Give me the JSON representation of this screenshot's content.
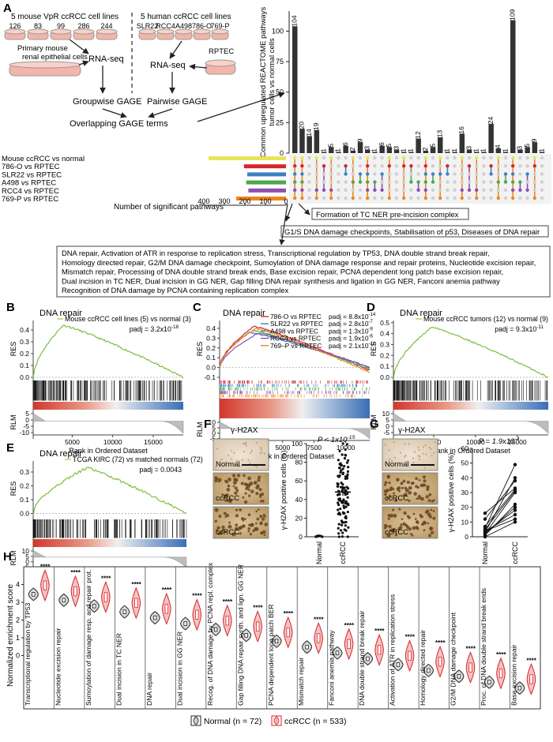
{
  "panel_A": {
    "label": "A",
    "left_title": "5 mouse VpR ccRCC cell lines",
    "mouse_lines": [
      "126",
      "83",
      "99",
      "286",
      "244"
    ],
    "primary_cells": "Primary mouse renal epithelial cells",
    "right_title": "5 human ccRCC cell lines",
    "human_lines": [
      "SLR22",
      "RCC4",
      "A498",
      "786-O",
      "769-P"
    ],
    "rptec": "RPTEC",
    "rnaseq": "RNA-seq",
    "groupwise": "Groupwise GAGE",
    "pairwise": "Pairwise GAGE",
    "overlap": "Overlapping GAGE terms",
    "ylabel_lines": [
      "Common upregulated REACTOME pathways",
      "tumor cells vs normal cells"
    ],
    "xlabel": "Number of significant pathways",
    "set_labels": [
      "Mouse ccRCC vs normal",
      "786-O vs RPTEC",
      "SLR22 vs RPTEC",
      "A498 vs RPTEC",
      "RCC4 vs RPTEC",
      "769-P vs RPTEC"
    ],
    "set_colors": [
      "#e9e35a",
      "#d4262b",
      "#3f7fc4",
      "#4ea84c",
      "#8f4db0",
      "#ee8622"
    ],
    "callout_tcner": "Formation of TC NER pre-incision complex",
    "callout_g1s": "G1/S DNA damage checkpoints, Stabilisation of p53, Diseases of DNA repair",
    "callout_box_lines": [
      "DNA repair, Activation of ATR in response to replication stress, Transcriptional regulation by TP53, DNA double strand break repair,",
      "Homology directed repair, G2/M DNA damage checkpoint, Sumoylation of DNA damage response and repair proteins, Nucleotide excision repair,",
      "Mismatch repair, Processing of DNA double strand break ends, Base excision repair, PCNA dependent long patch base excision repair,",
      "Dual incision in TC NER, Dual incision in GG NER, Gap filling DNA repair synthesis and ligation in GG NER, Fanconi anemia pathway",
      "Recognition of DNA damage by PCNA containing replication complex"
    ]
  },
  "panel_B": {
    "label": "B",
    "title": "DNA repair",
    "legend": "Mouse ccRCC cell lines (5) vs normal (3)",
    "padj": "padj = 3.2x10",
    "padj_exp": "-18",
    "res": "RES",
    "rlm": "RLM",
    "xlabel": "Rank in Ordered Dataset"
  },
  "panel_C": {
    "label": "C",
    "title": "DNA repair",
    "legend": [
      {
        "name": "786-O vs RPTEC",
        "padj": "padj = 8.8x10",
        "exp": "-14"
      },
      {
        "name": "SLR22  vs RPTEC",
        "padj": "padj = 2.8x10",
        "exp": "-7"
      },
      {
        "name": "A498   vs RPTEC",
        "padj": "padj = 1.3x10",
        "exp": "-9"
      },
      {
        "name": "RCC4 vs RPTEC",
        "padj": "padj = 1.9x10",
        "exp": "-6"
      },
      {
        "name": "769–P vs RPTEC",
        "padj": "padj = 2.1x10",
        "exp": "-11"
      }
    ],
    "res": "RES",
    "rlm": "RLM",
    "xlabel": "Rank in Ordered Dataset"
  },
  "panel_D": {
    "label": "D",
    "title": "DNA repair",
    "legend": "Mouse ccRCC tumors (12) vs normal (9)",
    "padj": "padj = 9.3x10",
    "padj_exp": "-11",
    "res": "RES",
    "rlm": "RLM",
    "xlabel": "Rank in Ordered Dataset"
  },
  "panel_E": {
    "label": "E",
    "title": "DNA repair",
    "legend": "TCGA KIRC (72) vs matched normals (72)",
    "padj": "padj = 0.0043",
    "res": "RES",
    "rlm": "RLM",
    "xlabel": "Rank in Ordered Dataset"
  },
  "panel_F": {
    "label": "F",
    "stain": "γ-H2AX",
    "tiles": [
      "Normal",
      "ccRCC",
      "ccRCC"
    ],
    "pval": "P < 1x10",
    "pval_exp": "-15",
    "ylabel": "γ-H2AX positive cells (%)",
    "groups": [
      "Normal",
      "ccRCC"
    ]
  },
  "panel_G": {
    "label": "G",
    "stain": "γ-H2AX",
    "tiles": [
      "Normal",
      "ccRCC",
      "ccRCC"
    ],
    "pval": "P = 1.9x10",
    "pval_exp": "-4",
    "ylabel": "γ-H2AX positive cells (%)",
    "groups": [
      "Normal",
      "ccRCC"
    ]
  },
  "panel_H": {
    "label": "H",
    "ylabel": "Normalized enrichment score",
    "pathways": [
      "Transcriptional regulation by TP53",
      "Nucleotide excision repair",
      "Sumoylation of damage resp. and repair prot.",
      "Dual incision in TC NER",
      "DNA repair",
      "Dual incision in GG NER",
      "Recog. of DNA damage by PCNA repl. complex",
      "Gap filling DNA repair synth. and lign. GG NER",
      "PCNA dependent long patch BER",
      "Mismatch repair",
      "Fanconi anemia pathway",
      "DNA double strand break repair",
      "Activation of ATR in replication stress",
      "Homology directed repair",
      "G2/M DNA damage checkpoint",
      "Proc. of DNA double strand break ends",
      "Base excision repair"
    ],
    "sig": "****",
    "legend_normal": "Normal (n = 72)",
    "legend_ccrcc": "ccRCC (n = 533)"
  },
  "chart_data": [
    {
      "type": "bar",
      "title": "",
      "ylabel": "Common upregulated REACTOME pathways tumor cells vs normal cells",
      "values": [
        104,
        20,
        14,
        19,
        1,
        5,
        1,
        6,
        2,
        9,
        3,
        1,
        6,
        5,
        3,
        1,
        1,
        12,
        2,
        5,
        13,
        1,
        1,
        16,
        3,
        1,
        1,
        24,
        4,
        1,
        109,
        3,
        5,
        9,
        1
      ],
      "horizontal_bars": {
        "categories": [
          "Mouse ccRCC vs normal",
          "786-O vs RPTEC",
          "SLR22 vs RPTEC",
          "A498 vs RPTEC",
          "RCC4 vs RPTEC",
          "769-P vs RPTEC"
        ],
        "values": [
          350,
          190,
          175,
          180,
          170,
          225
        ]
      },
      "xlabel": "Number of significant pathways",
      "xticks": [
        "400",
        "300",
        "200",
        "100",
        "0"
      ]
    },
    {
      "type": "scatter",
      "title": "",
      "ylabel": "γ-H2AX positive cells (%)",
      "categories": [
        "Normal",
        "ccRCC"
      ],
      "yticks": [
        "0",
        "20",
        "40",
        "60",
        "80",
        "100"
      ],
      "ylim": [
        0,
        100
      ],
      "normal_values": [
        0,
        0.5,
        1,
        0,
        0.3,
        1.2,
        0.8,
        0.2
      ],
      "ccrcc_mean": 48
    },
    {
      "type": "line",
      "title": "",
      "ylabel": "γ-H2AX positive cells (%)",
      "categories": [
        "Normal",
        "ccRCC"
      ],
      "yticks": [
        "0",
        "10",
        "20",
        "30",
        "40",
        "50",
        "60"
      ],
      "ylim": [
        0,
        60
      ],
      "pairs": [
        [
          0,
          10
        ],
        [
          1,
          22
        ],
        [
          2,
          30
        ],
        [
          3,
          18
        ],
        [
          3,
          40
        ],
        [
          4,
          15
        ],
        [
          5,
          31
        ],
        [
          6,
          49
        ],
        [
          2,
          20
        ],
        [
          7,
          32
        ],
        [
          12,
          38
        ],
        [
          16,
          33
        ],
        [
          4,
          12
        ]
      ]
    },
    {
      "type": "line",
      "title": "DNA repair",
      "ylabel": "RES",
      "xlabel": "Rank in Ordered Dataset",
      "xticks": [
        "5000",
        "10000",
        "15000"
      ],
      "yticks": [
        "0.0",
        "0.1",
        "0.2",
        "0.3",
        "0.4"
      ],
      "rlm_ticks": [
        "5",
        "0",
        "-5",
        "-10"
      ]
    }
  ]
}
